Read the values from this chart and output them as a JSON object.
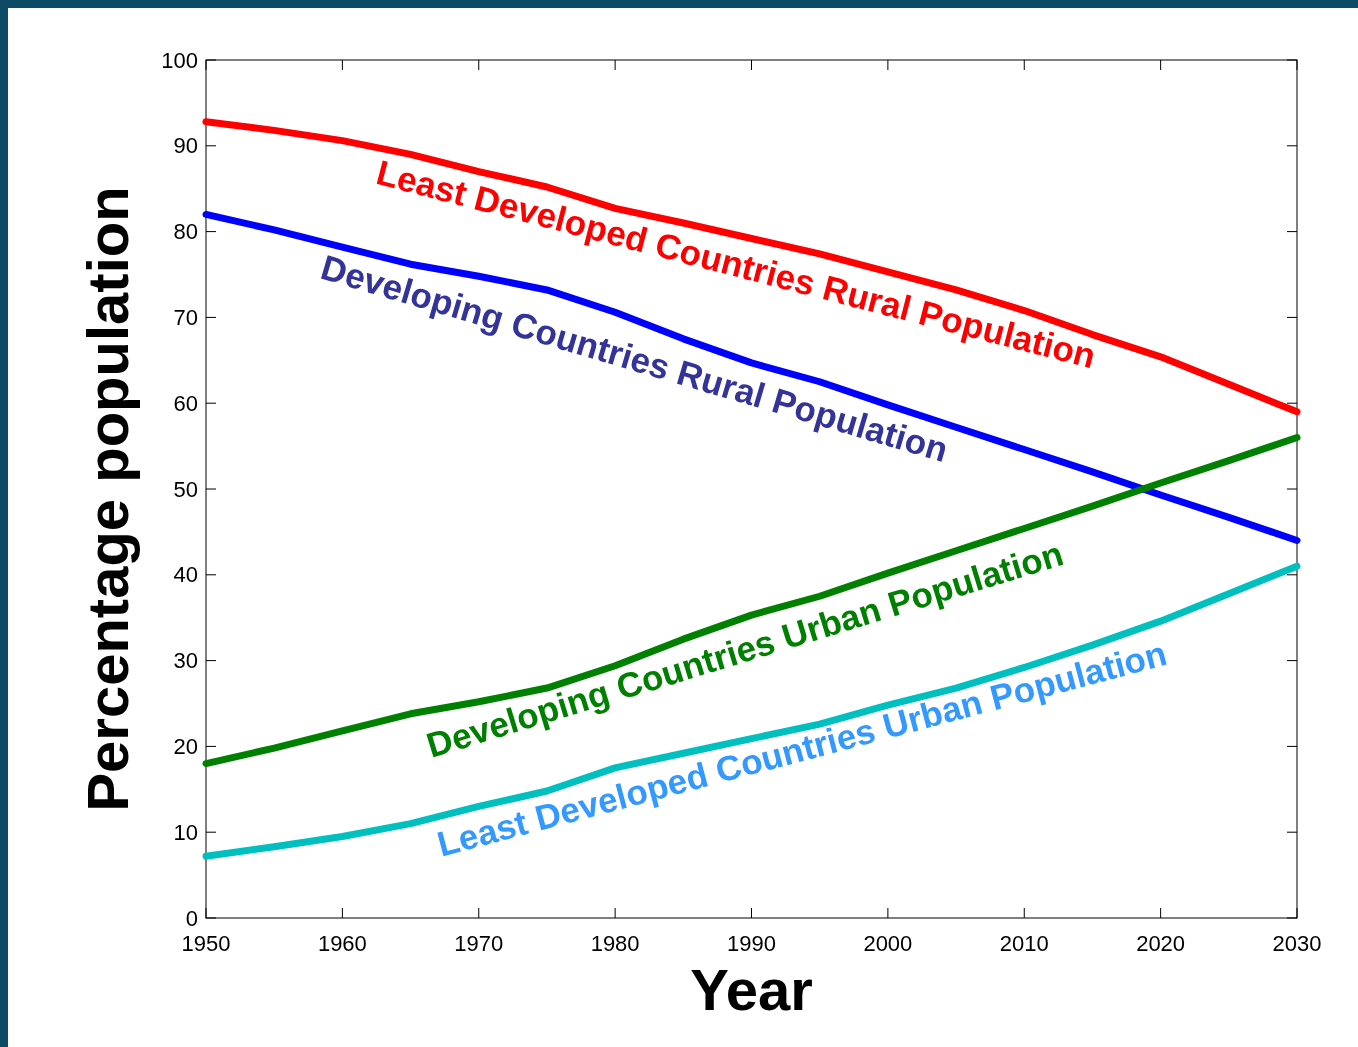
{
  "chart_data": {
    "type": "line",
    "xlabel": "Year",
    "ylabel": "Percentage population",
    "x": [
      1950,
      1955,
      1960,
      1965,
      1970,
      1975,
      1980,
      1985,
      1990,
      1995,
      2000,
      2005,
      2010,
      2015,
      2020,
      2025,
      2030
    ],
    "series": [
      {
        "name": "Least Developed Countries Rural Population",
        "color": "#ff0000",
        "values": [
          92.8,
          91.8,
          90.6,
          89.0,
          87.0,
          85.2,
          82.7,
          81.0,
          79.2,
          77.4,
          75.3,
          73.2,
          70.8,
          68.0,
          65.4,
          62.2,
          59.0
        ]
      },
      {
        "name": "Developing Countries Rural Population",
        "color": "#0000ff",
        "values": [
          82.0,
          80.2,
          78.2,
          76.2,
          74.8,
          73.2,
          70.6,
          67.5,
          64.7,
          62.5,
          59.8,
          57.2,
          54.6,
          52.0,
          49.3,
          46.7,
          44.0
        ]
      },
      {
        "name": "Developing Countries Urban Population",
        "color": "#008000",
        "values": [
          18.0,
          19.8,
          21.8,
          23.8,
          25.2,
          26.8,
          29.4,
          32.5,
          35.3,
          37.5,
          40.2,
          42.8,
          45.4,
          48.0,
          50.7,
          53.3,
          56.0
        ]
      },
      {
        "name": "Least Developed Countries Urban Population",
        "color": "#00bfbf",
        "values": [
          7.2,
          8.3,
          9.5,
          11.0,
          13.0,
          14.8,
          17.5,
          19.2,
          20.9,
          22.6,
          24.8,
          26.8,
          29.2,
          31.8,
          34.6,
          37.8,
          41.0
        ]
      }
    ],
    "xlim": [
      1950,
      2030
    ],
    "xticks": [
      1950,
      1960,
      1970,
      1980,
      1990,
      2000,
      2010,
      2020,
      2030
    ],
    "ylim": [
      0,
      100
    ],
    "yticks": [
      0,
      10,
      20,
      30,
      40,
      50,
      60,
      70,
      80,
      90,
      100
    ],
    "grid": false,
    "marker": "none",
    "line_style": "solid"
  }
}
